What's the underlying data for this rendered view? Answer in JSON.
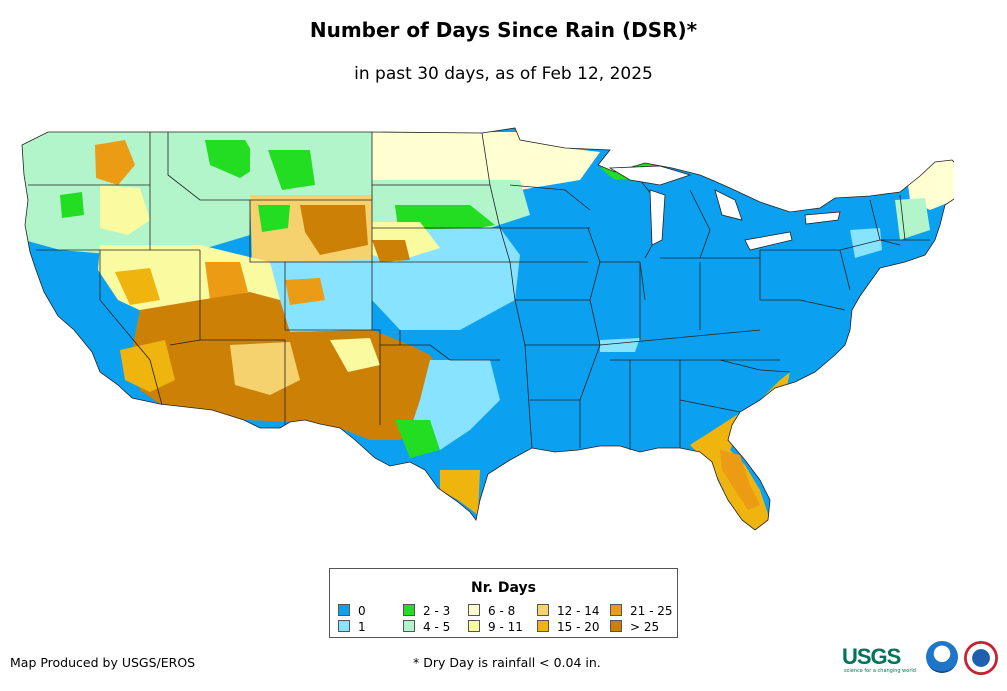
{
  "title": "Number of Days Since Rain (DSR)*",
  "subtitle": "in past 30 days, as of Feb 12, 2025",
  "legend": {
    "title": "Nr. Days",
    "items": [
      {
        "label": "0",
        "color": "#0ba0f0"
      },
      {
        "label": "1",
        "color": "#87e3ff"
      },
      {
        "label": "2 - 3",
        "color": "#22dd22"
      },
      {
        "label": "4 - 5",
        "color": "#b2f5cb"
      },
      {
        "label": "6 - 8",
        "color": "#ffffd2"
      },
      {
        "label": "9 - 11",
        "color": "#fafaa0"
      },
      {
        "label": "12 - 14",
        "color": "#f5d26e"
      },
      {
        "label": "15 - 20",
        "color": "#f0b40f"
      },
      {
        "label": "21 - 25",
        "color": "#eb9b14"
      },
      {
        "label": "> 25",
        "color": "#cc8106"
      }
    ]
  },
  "credit": "Map Produced by USGS/EROS",
  "footnote": "* Dry Day is rainfall < 0.04 in.",
  "logos": {
    "usgs": "USGS",
    "usgs_tagline": "science for a changing world",
    "noaa": "noaa-logo",
    "nws": "nws-logo"
  }
}
